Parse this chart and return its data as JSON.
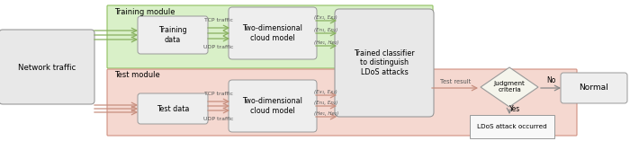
{
  "fig_width": 7.0,
  "fig_height": 1.57,
  "dpi": 100,
  "bg_color": "#ffffff",
  "green_bg": "#d9f0c8",
  "pink_bg": "#f5d8d0",
  "box_fill": "#eeeeee",
  "box_edge": "#999999",
  "arrow_salmon": "#c89080",
  "arrow_green": "#88b060",
  "training_module_label": "Training module",
  "test_module_label": "Test module",
  "network_traffic_label": "Network traffic",
  "training_data_label": "Training\ndata",
  "test_data_label": "Test data",
  "cloud_model_label": "Two-dimensional\ncloud model",
  "trained_classifier_label": "Trained classifier\nto distinguish\nLDoS attacks",
  "judgment_label": "Judgment\ncriteria",
  "normal_label": "Normal",
  "ldos_label": "LDoS attack occurred",
  "tcp_traffic": "TCP traffic",
  "udp_traffic": "UDP traffic",
  "test_result": "Test result",
  "yes_label": "Yes",
  "no_label": "No",
  "ex_label": "(Ex₁, Ex₂)",
  "en_label": "(En₁, En₂)",
  "he_label": "(He₁, He₂)"
}
